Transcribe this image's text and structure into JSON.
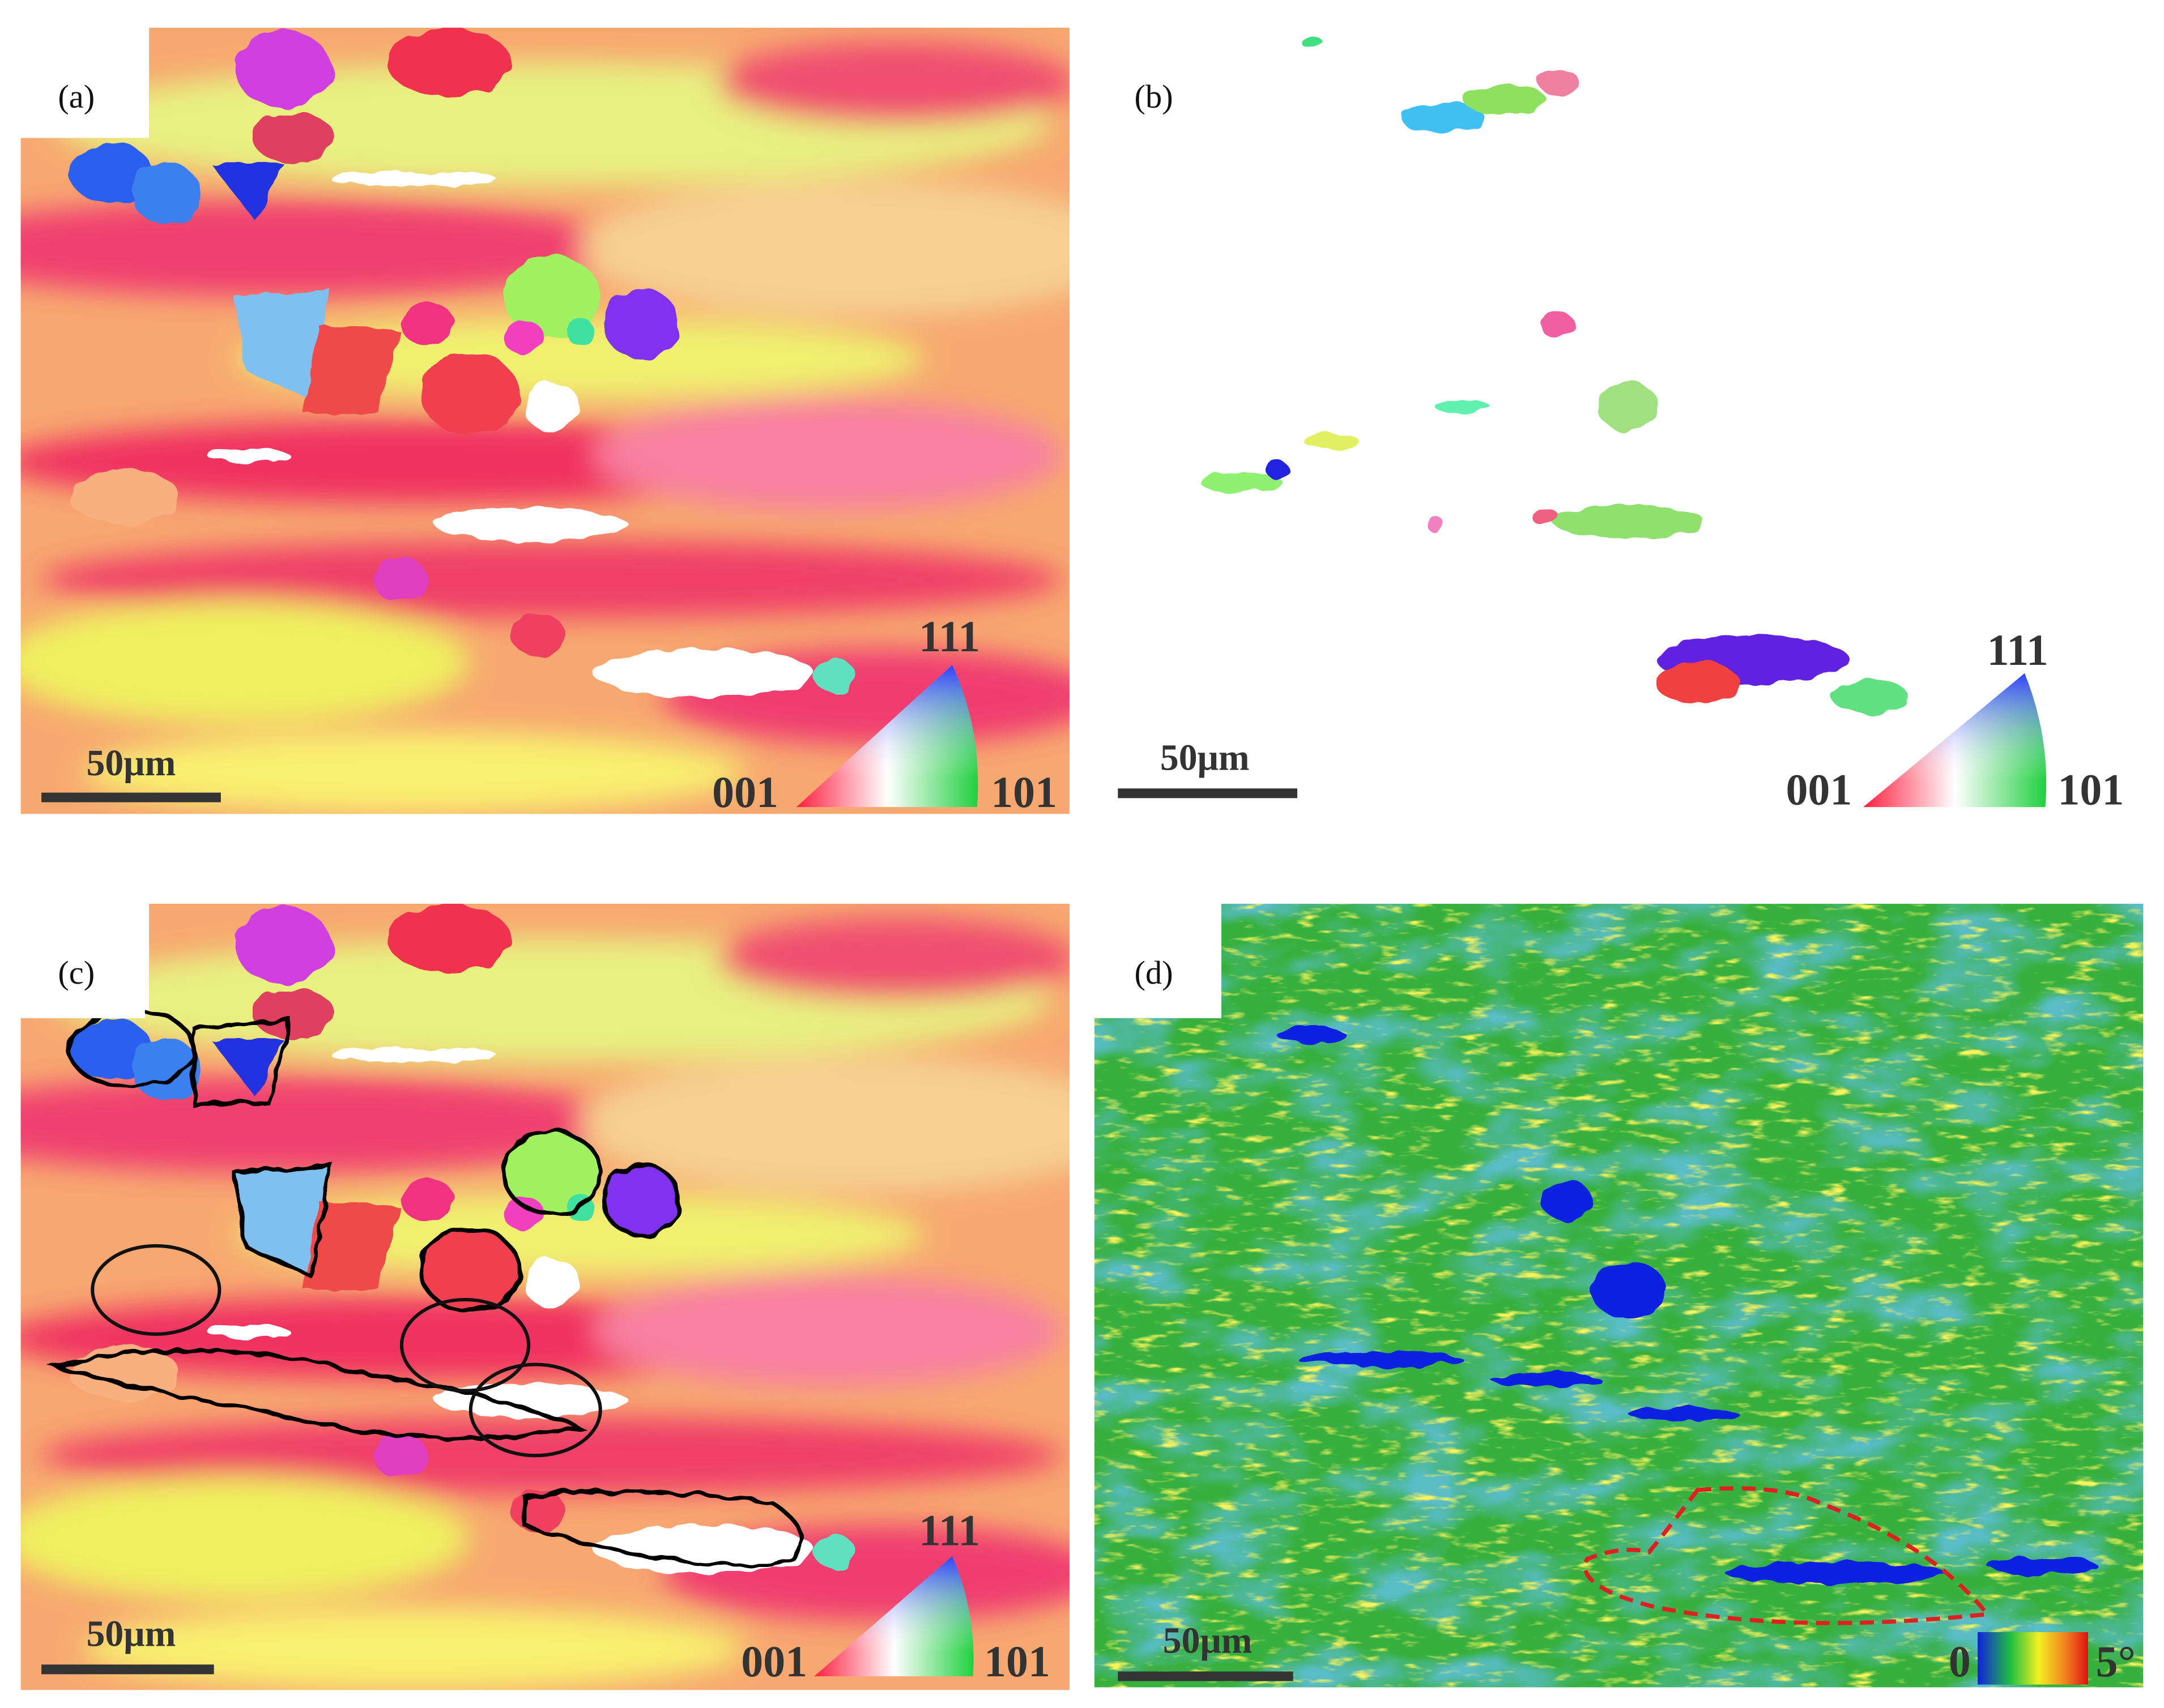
{
  "panels": [
    {
      "label": "(a)",
      "scale_bar": "50μm",
      "ipf_key": {
        "top": "111",
        "left": "001",
        "right": "101"
      }
    },
    {
      "label": "(b)",
      "scale_bar": "50μm",
      "ipf_key": {
        "top": "111",
        "left": "001",
        "right": "101"
      }
    },
    {
      "label": "(c)",
      "scale_bar": "50μm",
      "ipf_key": {
        "top": "111",
        "left": "001",
        "right": "101"
      }
    },
    {
      "label": "(d)",
      "scale_bar": "50μm",
      "color_key": {
        "min": "0",
        "max": "5°"
      }
    }
  ]
}
